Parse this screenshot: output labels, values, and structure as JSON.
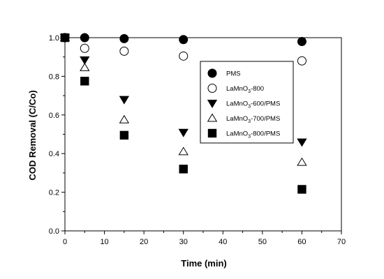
{
  "chart_data": {
    "type": "scatter",
    "title": "",
    "xlabel": "Time (min)",
    "ylabel": "COD Removal (C/Co)",
    "xlim": [
      0,
      70
    ],
    "ylim": [
      0.0,
      1.0
    ],
    "x_ticks": [
      "0",
      "10",
      "20",
      "30",
      "40",
      "50",
      "60",
      "70"
    ],
    "y_ticks": [
      "0.0",
      "0.2",
      "0.4",
      "0.6",
      "0.8",
      "1.0"
    ],
    "grid": false,
    "legend_position": "upper-right inside",
    "series": [
      {
        "name": "PMS",
        "legend_main": "PMS",
        "legend_sub": "",
        "legend_tail": "",
        "marker": "filled-circle",
        "x": [
          0,
          5,
          15,
          30,
          60
        ],
        "y": [
          1.0,
          1.0,
          0.995,
          0.99,
          0.98
        ]
      },
      {
        "name": "LaMnO3-800",
        "legend_main": "LaMnO",
        "legend_sub": "3",
        "legend_tail": "-800",
        "marker": "open-circle",
        "x": [
          0,
          5,
          15,
          30,
          60
        ],
        "y": [
          1.0,
          0.945,
          0.93,
          0.905,
          0.88
        ]
      },
      {
        "name": "LaMnO3-600/PMS",
        "legend_main": "LaMnO",
        "legend_sub": "3",
        "legend_tail": "-600/PMS",
        "marker": "filled-triangle-down",
        "x": [
          0,
          5,
          15,
          30,
          60
        ],
        "y": [
          1.0,
          0.885,
          0.68,
          0.51,
          0.46
        ]
      },
      {
        "name": "LaMnO3-700/PMS",
        "legend_main": "LaMnO",
        "legend_sub": "3",
        "legend_tail": "-700/PMS",
        "marker": "open-triangle-up",
        "x": [
          0,
          5,
          15,
          30,
          60
        ],
        "y": [
          1.0,
          0.845,
          0.575,
          0.41,
          0.355
        ]
      },
      {
        "name": "LaMnO3-800/PMS",
        "legend_main": "LaMnO",
        "legend_sub": "3",
        "legend_tail": "-800/PMS",
        "marker": "filled-square",
        "x": [
          0,
          5,
          15,
          30,
          60
        ],
        "y": [
          1.0,
          0.775,
          0.495,
          0.32,
          0.215
        ]
      }
    ]
  }
}
